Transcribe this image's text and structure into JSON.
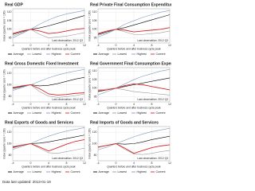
{
  "chart_data": [
    {
      "type": "line",
      "title": "Real GDP",
      "xlabel": "Quarters before and after business cycle peak",
      "ylabel": "Index (quarter zero = 100)",
      "annotation": "Last observation: 2012 Q3",
      "x": [
        -4,
        -2,
        0,
        2,
        4,
        6,
        8,
        10,
        12
      ],
      "xlim": [
        -4,
        12
      ],
      "xticks": [
        -4,
        0,
        4,
        8,
        12
      ],
      "ylim": [
        92,
        112
      ],
      "yticks": [
        95,
        100,
        105,
        110
      ],
      "grid": true,
      "series": [
        {
          "name": "Average",
          "color": "#000000",
          "values": [
            97,
            98.5,
            100,
            100.8,
            102,
            103.5,
            105,
            106.5,
            108
          ]
        },
        {
          "name": "Lowest",
          "color": "#9a9a9a",
          "values": [
            96,
            98,
            100,
            97,
            95,
            95.5,
            96,
            97,
            98
          ]
        },
        {
          "name": "Highest",
          "color": "#7f9cc0",
          "values": [
            95,
            97.5,
            100,
            103,
            105.5,
            107.5,
            109,
            110,
            111
          ]
        },
        {
          "name": "Current",
          "color": "#d62728",
          "values": [
            97.5,
            99,
            100,
            99,
            97.5,
            98,
            99,
            100,
            100.5
          ]
        }
      ]
    },
    {
      "type": "line",
      "title": "Real Private Final Consumption Expenditures",
      "xlabel": "Quarters before and after business cycle peak",
      "ylabel": "Index (quarter zero = 100)",
      "annotation": "Last observation: 2012 Q3",
      "x": [
        -4,
        -2,
        0,
        2,
        4,
        6,
        8,
        10,
        12
      ],
      "xlim": [
        -4,
        12
      ],
      "xticks": [
        -4,
        0,
        4,
        8,
        12
      ],
      "ylim": [
        92,
        112
      ],
      "yticks": [
        95,
        100,
        105,
        110
      ],
      "grid": true,
      "series": [
        {
          "name": "Average",
          "color": "#000000",
          "values": [
            97,
            98.5,
            100,
            101,
            102.5,
            104,
            105.5,
            107,
            108.5
          ]
        },
        {
          "name": "Lowest",
          "color": "#9a9a9a",
          "values": [
            96.5,
            98,
            100,
            98.5,
            97,
            97,
            97.5,
            98,
            99
          ]
        },
        {
          "name": "Highest",
          "color": "#7f9cc0",
          "values": [
            95.5,
            97.5,
            100,
            103,
            105,
            107,
            108.5,
            110,
            111
          ]
        },
        {
          "name": "Current",
          "color": "#d62728",
          "values": [
            97.5,
            99,
            100,
            99.5,
            98.5,
            99,
            99.5,
            100,
            101
          ]
        }
      ]
    },
    {
      "type": "line",
      "title": "Real Gross Domestic Fixed Investment",
      "xlabel": "Quarters before and after business cycle peak",
      "ylabel": "Index (quarter zero = 100)",
      "annotation": "Last observation: 2012 Q3",
      "x": [
        -4,
        -2,
        0,
        2,
        4,
        6,
        8,
        10,
        12
      ],
      "xlim": [
        -4,
        12
      ],
      "xticks": [
        -4,
        0,
        4,
        8,
        12
      ],
      "ylim": [
        70,
        130
      ],
      "yticks": [
        80,
        100,
        120
      ],
      "grid": true,
      "series": [
        {
          "name": "Average",
          "color": "#000000",
          "values": [
            94,
            97,
            100,
            98,
            99,
            102,
            106,
            110,
            113
          ]
        },
        {
          "name": "Lowest",
          "color": "#9a9a9a",
          "values": [
            92,
            96,
            100,
            88,
            80,
            78,
            79,
            81,
            84
          ]
        },
        {
          "name": "Highest",
          "color": "#7f9cc0",
          "values": [
            90,
            95,
            100,
            106,
            112,
            117,
            121,
            124,
            127
          ]
        },
        {
          "name": "Current",
          "color": "#d62728",
          "values": [
            95,
            98,
            100,
            93,
            84,
            82,
            83,
            85,
            86
          ]
        }
      ]
    },
    {
      "type": "line",
      "title": "Real Government Final Consumption Expenditures",
      "xlabel": "Quarters before and after business cycle peak",
      "ylabel": "Index (quarter zero = 100)",
      "annotation": "Last observation: 2012 Q3",
      "x": [
        -4,
        -2,
        0,
        2,
        4,
        6,
        8,
        10,
        12
      ],
      "xlim": [
        -4,
        12
      ],
      "xticks": [
        -4,
        0,
        4,
        8,
        12
      ],
      "ylim": [
        92,
        112
      ],
      "yticks": [
        95,
        100,
        105,
        110
      ],
      "grid": true,
      "series": [
        {
          "name": "Average",
          "color": "#000000",
          "values": [
            98,
            99,
            100,
            101,
            102,
            103,
            104,
            105,
            106
          ]
        },
        {
          "name": "Lowest",
          "color": "#9a9a9a",
          "values": [
            99,
            99.5,
            100,
            99,
            98,
            97.5,
            97,
            96.5,
            96
          ]
        },
        {
          "name": "Highest",
          "color": "#7f9cc0",
          "values": [
            96,
            98,
            100,
            102.5,
            105,
            107,
            108.5,
            110,
            111
          ]
        },
        {
          "name": "Current",
          "color": "#d62728",
          "values": [
            98.5,
            99,
            100,
            101.5,
            102.5,
            102,
            101,
            100,
            99
          ]
        }
      ]
    },
    {
      "type": "line",
      "title": "Real Exports of Goods and Services",
      "xlabel": "Quarters before and after business cycle peak",
      "ylabel": "Index (quarter zero = 100)",
      "annotation": "Last observation: 2012 Q3",
      "x": [
        -4,
        -2,
        0,
        2,
        4,
        6,
        8,
        10,
        12
      ],
      "xlim": [
        -4,
        12
      ],
      "xticks": [
        -4,
        0,
        4,
        8,
        12
      ],
      "ylim": [
        70,
        130
      ],
      "yticks": [
        80,
        100,
        120
      ],
      "grid": true,
      "series": [
        {
          "name": "Average",
          "color": "#000000",
          "values": [
            94,
            97,
            100,
            101,
            103,
            106,
            109,
            112,
            115
          ]
        },
        {
          "name": "Lowest",
          "color": "#9a9a9a",
          "values": [
            95,
            98,
            100,
            92,
            84,
            83,
            86,
            89,
            92
          ]
        },
        {
          "name": "Highest",
          "color": "#7f9cc0",
          "values": [
            90,
            95,
            100,
            107,
            113,
            118,
            122,
            125,
            128
          ]
        },
        {
          "name": "Current",
          "color": "#d62728",
          "values": [
            93,
            97,
            100,
            94,
            87,
            93,
            99,
            104,
            107
          ]
        }
      ]
    },
    {
      "type": "line",
      "title": "Real Imports of Goods and Services",
      "xlabel": "Quarters before and after business cycle peak",
      "ylabel": "Index (quarter zero = 100)",
      "annotation": "Last observation: 2012 Q3",
      "x": [
        -4,
        -2,
        0,
        2,
        4,
        6,
        8,
        10,
        12
      ],
      "xlim": [
        -4,
        12
      ],
      "xticks": [
        -4,
        0,
        4,
        8,
        12
      ],
      "ylim": [
        70,
        130
      ],
      "yticks": [
        80,
        100,
        120
      ],
      "grid": true,
      "series": [
        {
          "name": "Average",
          "color": "#000000",
          "values": [
            94,
            97,
            100,
            99,
            100,
            103,
            107,
            110,
            113
          ]
        },
        {
          "name": "Lowest",
          "color": "#9a9a9a",
          "values": [
            93,
            97,
            100,
            90,
            82,
            81,
            83,
            86,
            88
          ]
        },
        {
          "name": "Highest",
          "color": "#7f9cc0",
          "values": [
            89,
            94,
            100,
            106,
            112,
            117,
            121,
            124,
            127
          ]
        },
        {
          "name": "Current",
          "color": "#d62728",
          "values": [
            94,
            97,
            100,
            92,
            83,
            88,
            93,
            96,
            98
          ]
        }
      ]
    }
  ],
  "footer": "Data last updated: 2013-01-19"
}
